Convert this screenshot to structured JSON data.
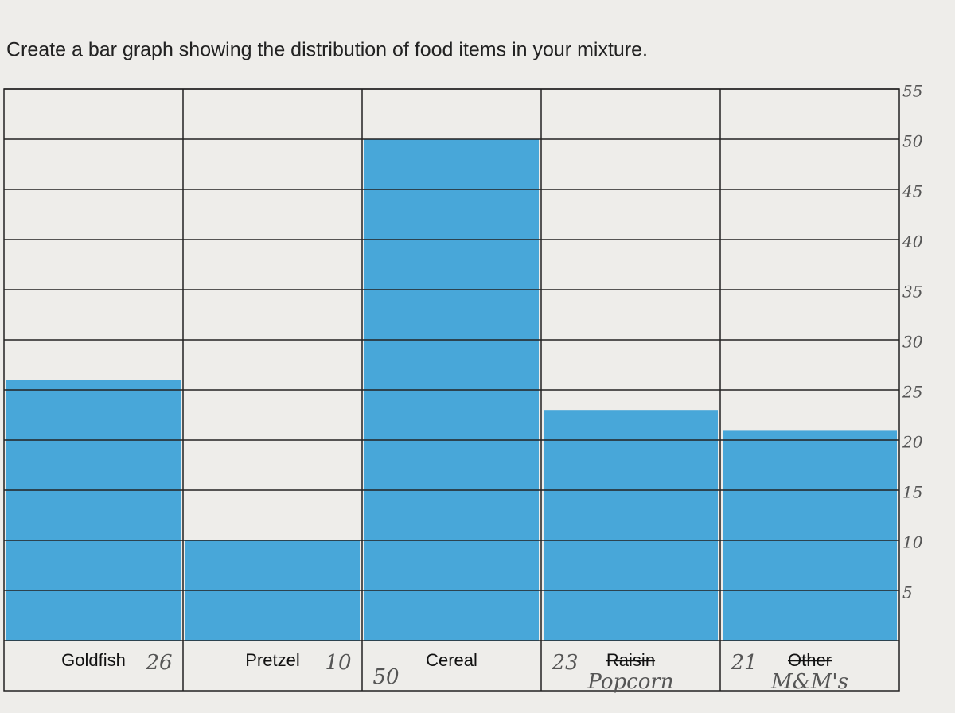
{
  "chart_data": {
    "type": "bar",
    "title": "Create a bar graph showing the distribution of food items in your mixture.",
    "categories": [
      "Goldfish",
      "Pretzel",
      "Cereal",
      "Raisin",
      "Other"
    ],
    "category_notes": [
      null,
      null,
      null,
      "Popcorn",
      "M&M's"
    ],
    "values": [
      26,
      10,
      50,
      23,
      21
    ],
    "color": "#2a9ad6",
    "ylim": [
      0,
      55
    ],
    "yticks": [
      5,
      10,
      15,
      20,
      25,
      30,
      35,
      40,
      45,
      50,
      55
    ],
    "grid": true
  }
}
